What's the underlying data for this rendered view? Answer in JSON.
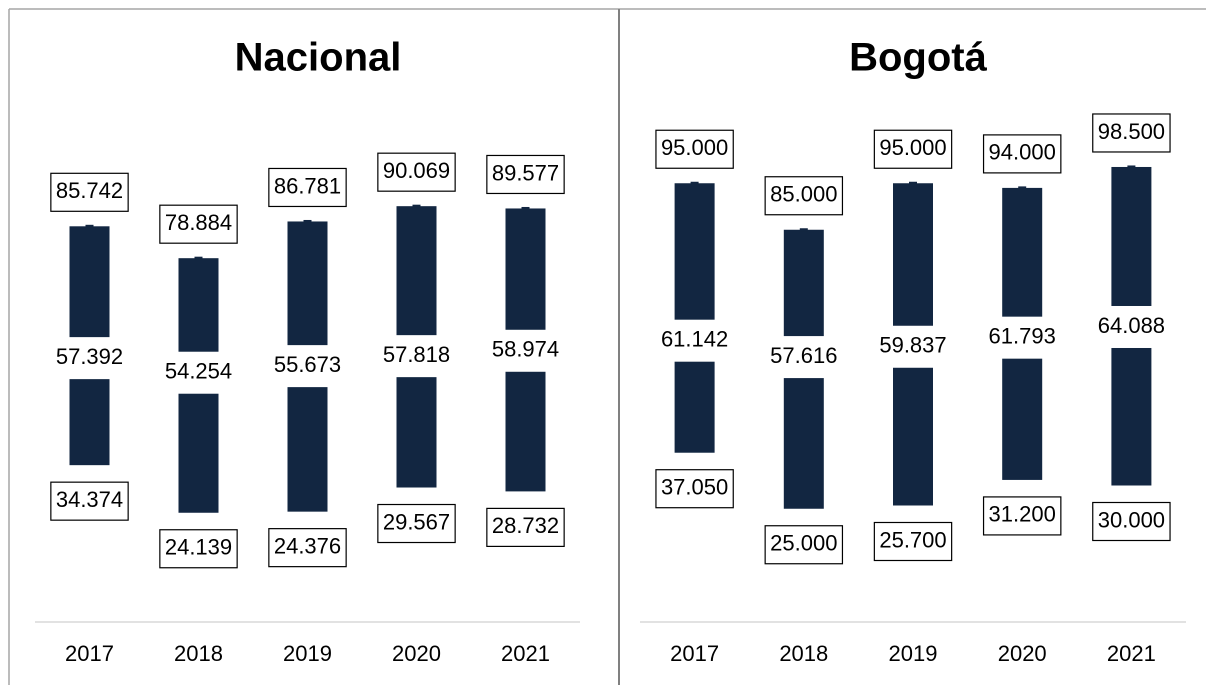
{
  "chart_data": [
    {
      "type": "range_bar",
      "title": "Nacional",
      "categories": [
        "2017",
        "2018",
        "2019",
        "2020",
        "2021"
      ],
      "high": {
        "values": [
          85742,
          78884,
          86781,
          90069,
          89577
        ],
        "value_labels": [
          "85.742",
          "78.884",
          "86.781",
          "90.069",
          "89.577"
        ]
      },
      "mid": {
        "values": [
          57392,
          54254,
          55673,
          57818,
          58974
        ],
        "value_labels": [
          "57.392",
          "54.254",
          "55.673",
          "57.818",
          "58.974"
        ]
      },
      "low": {
        "values": [
          34374,
          24139,
          24376,
          29567,
          28732
        ],
        "value_labels": [
          "34.374",
          "24.139",
          "24.376",
          "29.567",
          "28.732"
        ]
      },
      "color": "#122641",
      "ylim": [
        0,
        100000
      ]
    },
    {
      "type": "range_bar",
      "title": "Bogotá",
      "categories": [
        "2017",
        "2018",
        "2019",
        "2020",
        "2021"
      ],
      "high": {
        "values": [
          95000,
          85000,
          95000,
          94000,
          98500
        ],
        "value_labels": [
          "95.000",
          "85.000",
          "95.000",
          "94.000",
          "98.500"
        ]
      },
      "mid": {
        "values": [
          61142,
          57616,
          59837,
          61793,
          64088
        ],
        "value_labels": [
          "61.142",
          "57.616",
          "59.837",
          "61.793",
          "64.088"
        ]
      },
      "low": {
        "values": [
          37050,
          25000,
          25700,
          31200,
          30000
        ],
        "value_labels": [
          "37.050",
          "25.000",
          "25.700",
          "31.200",
          "30.000"
        ]
      },
      "color": "#122641",
      "ylim": [
        0,
        100000
      ]
    }
  ]
}
